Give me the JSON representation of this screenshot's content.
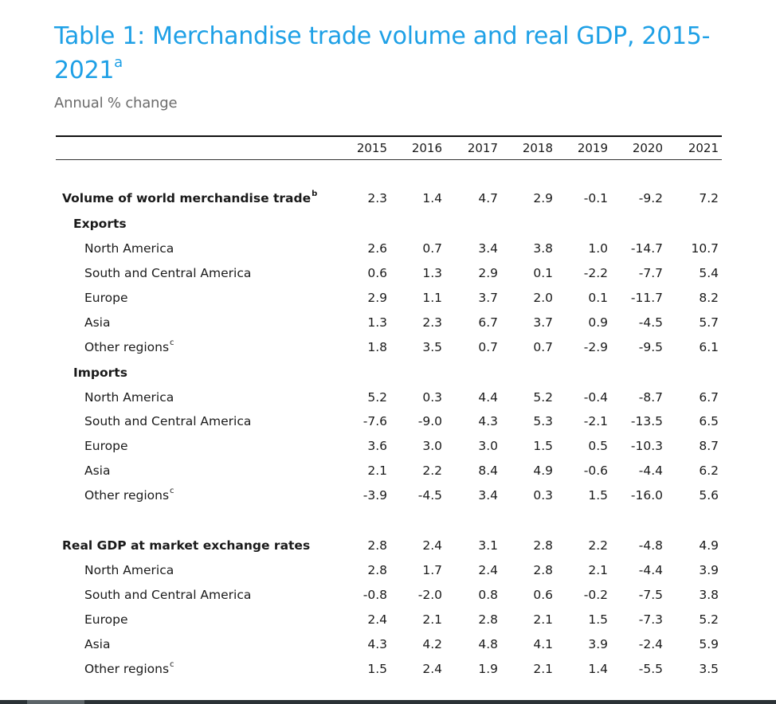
{
  "title": "Table 1: Merchandise trade volume and real GDP, 2015-2021",
  "title_sup": "a",
  "subtitle": "Annual % change",
  "years": [
    "2015",
    "2016",
    "2017",
    "2018",
    "2019",
    "2020",
    "2021"
  ],
  "rows": [
    {
      "label": "Volume of world merchandise trade",
      "sup": "b",
      "level": "section",
      "values": [
        "2.3",
        "1.4",
        "4.7",
        "2.9",
        "-0.1",
        "-9.2",
        "7.2"
      ]
    },
    {
      "label": "Exports",
      "sup": "",
      "level": "group",
      "values": []
    },
    {
      "label": "North America",
      "sup": "",
      "level": "region",
      "values": [
        "2.6",
        "0.7",
        "3.4",
        "3.8",
        "1.0",
        "-14.7",
        "10.7"
      ]
    },
    {
      "label": "South and Central America",
      "sup": "",
      "level": "region",
      "values": [
        "0.6",
        "1.3",
        "2.9",
        "0.1",
        "-2.2",
        "-7.7",
        "5.4"
      ]
    },
    {
      "label": "Europe",
      "sup": "",
      "level": "region",
      "values": [
        "2.9",
        "1.1",
        "3.7",
        "2.0",
        "0.1",
        "-11.7",
        "8.2"
      ]
    },
    {
      "label": "Asia",
      "sup": "",
      "level": "region",
      "values": [
        "1.3",
        "2.3",
        "6.7",
        "3.7",
        "0.9",
        "-4.5",
        "5.7"
      ]
    },
    {
      "label": "Other regions",
      "sup": "c",
      "level": "region",
      "values": [
        "1.8",
        "3.5",
        "0.7",
        "0.7",
        "-2.9",
        "-9.5",
        "6.1"
      ]
    },
    {
      "label": "Imports",
      "sup": "",
      "level": "group",
      "values": []
    },
    {
      "label": "North America",
      "sup": "",
      "level": "region",
      "values": [
        "5.2",
        "0.3",
        "4.4",
        "5.2",
        "-0.4",
        "-8.7",
        "6.7"
      ]
    },
    {
      "label": "South and Central America",
      "sup": "",
      "level": "region",
      "values": [
        "-7.6",
        "-9.0",
        "4.3",
        "5.3",
        "-2.1",
        "-13.5",
        "6.5"
      ]
    },
    {
      "label": "Europe",
      "sup": "",
      "level": "region",
      "values": [
        "3.6",
        "3.0",
        "3.0",
        "1.5",
        "0.5",
        "-10.3",
        "8.7"
      ]
    },
    {
      "label": "Asia",
      "sup": "",
      "level": "region",
      "values": [
        "2.1",
        "2.2",
        "8.4",
        "4.9",
        "-0.6",
        "-4.4",
        "6.2"
      ]
    },
    {
      "label": "Other regions",
      "sup": "c",
      "level": "region",
      "values": [
        "-3.9",
        "-4.5",
        "3.4",
        "0.3",
        "1.5",
        "-16.0",
        "5.6"
      ]
    },
    {
      "label": "Real GDP at market exchange rates",
      "sup": "",
      "level": "section",
      "values": [
        "2.8",
        "2.4",
        "3.1",
        "2.8",
        "2.2",
        "-4.8",
        "4.9"
      ]
    },
    {
      "label": "North America",
      "sup": "",
      "level": "region",
      "values": [
        "2.8",
        "1.7",
        "2.4",
        "2.8",
        "2.1",
        "-4.4",
        "3.9"
      ]
    },
    {
      "label": "South and Central America",
      "sup": "",
      "level": "region",
      "values": [
        "-0.8",
        "-2.0",
        "0.8",
        "0.6",
        "-0.2",
        "-7.5",
        "3.8"
      ]
    },
    {
      "label": "Europe",
      "sup": "",
      "level": "region",
      "values": [
        "2.4",
        "2.1",
        "2.8",
        "2.1",
        "1.5",
        "-7.3",
        "5.2"
      ]
    },
    {
      "label": "Asia",
      "sup": "",
      "level": "region",
      "values": [
        "4.3",
        "4.2",
        "4.8",
        "4.1",
        "3.9",
        "-2.4",
        "5.9"
      ]
    },
    {
      "label": "Other regions",
      "sup": "c",
      "level": "region",
      "values": [
        "1.5",
        "2.4",
        "1.9",
        "2.1",
        "1.4",
        "-5.5",
        "3.5"
      ]
    }
  ]
}
